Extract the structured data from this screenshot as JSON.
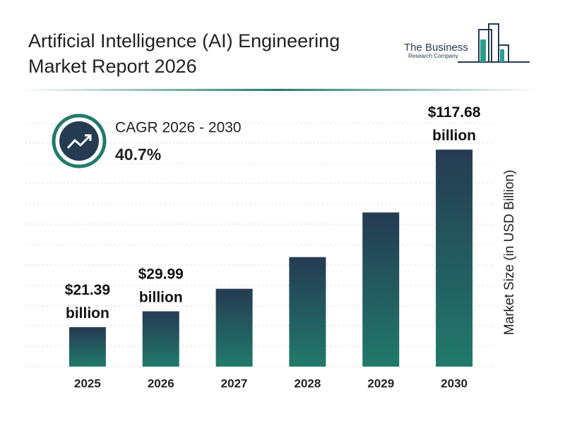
{
  "chart_data": {
    "type": "bar",
    "title": "Artificial Intelligence (AI) Engineering Market Report 2026",
    "brand": [
      "The Business",
      "Research Company"
    ],
    "cagr_label": "CAGR 2026 - 2030",
    "cagr_value": "40.7%",
    "y_label": "Market Size (in USD Billion)",
    "categories": [
      "2025",
      "2026",
      "2027",
      "2028",
      "2029",
      "2030"
    ],
    "values": [
      21.39,
      29.99,
      42.2,
      59.4,
      83.6,
      117.68
    ],
    "value_labels": [
      "$21.39 billion",
      "$29.99 billion",
      null,
      null,
      null,
      "$117.68 billion"
    ],
    "ylim": [
      0,
      130
    ],
    "color": [
      "#253b52",
      "#217a6b"
    ]
  }
}
